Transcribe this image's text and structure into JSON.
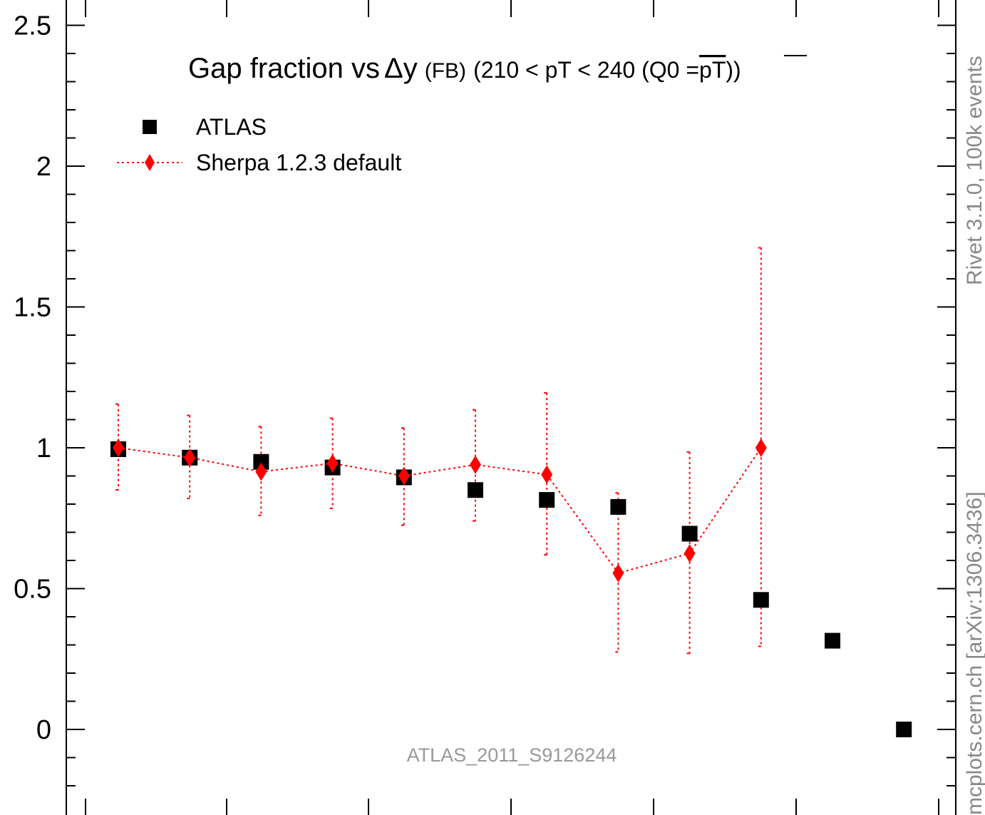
{
  "chart_data": {
    "type": "scatter",
    "title_parts": {
      "main": "Gap fraction vs",
      "delta": "Δy",
      "fb": "(FB)",
      "range": "(210 < pT < 240 (Q0 =",
      "overline": "pT",
      "close": "))"
    },
    "annotation": "ATLAS_2011_S9126244",
    "side_labels": {
      "top": "Rivet 3.1.0,  100k events",
      "bottom": "mcplots.cern.ch [arXiv:1306.3436]"
    },
    "ylim": [
      -0.26,
      2.56
    ],
    "xlim": [
      0,
      12
    ],
    "yticks": [
      {
        "value": 0,
        "label": "0"
      },
      {
        "value": 0.5,
        "label": "0.5"
      },
      {
        "value": 1,
        "label": "1"
      },
      {
        "value": 1.5,
        "label": "1.5"
      },
      {
        "value": 2,
        "label": "2"
      },
      {
        "value": 2.5,
        "label": "2.5"
      }
    ],
    "series": [
      {
        "name": "ATLAS",
        "color": "#000000",
        "marker": "square",
        "x": [
          0.5,
          1.5,
          2.5,
          3.5,
          4.5,
          5.5,
          6.5,
          7.5,
          8.5,
          9.5,
          10.5,
          11.5
        ],
        "values": [
          0.995,
          0.965,
          0.95,
          0.93,
          0.895,
          0.85,
          0.815,
          0.79,
          0.695,
          0.46,
          0.315,
          0.0
        ]
      },
      {
        "name": "Sherpa 1.2.3 default",
        "color": "#ff0000",
        "marker": "diamond",
        "line": "dotted",
        "x": [
          0.5,
          1.5,
          2.5,
          3.5,
          4.5,
          5.5,
          6.5,
          7.5,
          8.5,
          9.5
        ],
        "values": [
          1.0,
          0.965,
          0.915,
          0.945,
          0.9,
          0.94,
          0.905,
          0.555,
          0.625,
          1.0
        ],
        "err_low": [
          0.85,
          0.82,
          0.76,
          0.785,
          0.725,
          0.74,
          0.62,
          0.275,
          0.27,
          0.295
        ],
        "err_high": [
          1.155,
          1.115,
          1.075,
          1.105,
          1.07,
          1.135,
          1.195,
          0.84,
          0.985,
          1.71
        ]
      }
    ]
  }
}
